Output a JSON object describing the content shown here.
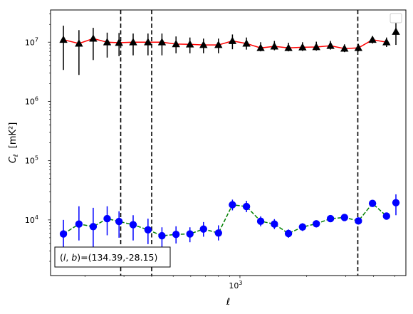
{
  "chart_data": {
    "type": "scatter",
    "xlabel": "ℓ",
    "ylabel": "C_ℓ  [mK²]",
    "xscale": "log",
    "yscale": "log",
    "xlim": [
      140,
      5600
    ],
    "ylim": [
      1150,
      35000000
    ],
    "x_ticks": [
      {
        "value": 1000,
        "label": "10",
        "exp": "3"
      }
    ],
    "y_ticks": [
      {
        "value": 10000,
        "label": "10",
        "exp": "4"
      },
      {
        "value": 100000,
        "label": "10",
        "exp": "5"
      },
      {
        "value": 1000000,
        "label": "10",
        "exp": "6"
      },
      {
        "value": 10000000,
        "label": "10",
        "exp": "7"
      }
    ],
    "legend": "upper right (empty)",
    "vlines": [
      290,
      400,
      3400
    ],
    "annotation": "(l, b)=(134.39,-28.15)",
    "series": [
      {
        "marker": "triangle",
        "color": "#000000",
        "line_color": "#ff0000",
        "line_style": "solid",
        "x": [
          160,
          188,
          218,
          252,
          285,
          330,
          385,
          445,
          515,
          595,
          685,
          800,
          925,
          1070,
          1240,
          1430,
          1655,
          1915,
          2210,
          2560,
          2960,
          3420,
          3960,
          4580
        ],
        "y": [
          11000000,
          9500000,
          11500000,
          10000000,
          9800000,
          10000000,
          10000000,
          10000000,
          9300000,
          9200000,
          9000000,
          9000000,
          10500000,
          9500000,
          8000000,
          8500000,
          8000000,
          8200000,
          8300000,
          8700000,
          7800000,
          8000000,
          11000000,
          10000000
        ],
        "yerr_low": [
          3400000,
          2800000,
          5000000,
          5500000,
          5800000,
          6000000,
          6000000,
          6000000,
          6500000,
          6500000,
          6500000,
          6500000,
          7600000,
          7500000,
          7000000,
          7300000,
          7000000,
          7100000,
          7200000,
          7500000,
          6800000,
          7000000,
          9500000,
          8300000
        ],
        "yerr_high": [
          19000000,
          16000000,
          17500000,
          14500000,
          14300000,
          14000000,
          14000000,
          14000000,
          12500000,
          12000000,
          11500000,
          11500000,
          13500000,
          12000000,
          10000000,
          10500000,
          9800000,
          10000000,
          10200000,
          10500000,
          9200000,
          9400000,
          12500000,
          12000000
        ]
      },
      {
        "marker": "triangle",
        "color": "#000000",
        "line_color": "#000000",
        "line_style": "none",
        "x": [
          5050
        ],
        "y": [
          15000000
        ],
        "yerr_low": [
          9000000
        ],
        "yerr_high": [
          25000000
        ]
      },
      {
        "marker": "circle",
        "color": "#0000ff",
        "line_color": "#008000",
        "line_style": "dashed",
        "x": [
          160,
          188,
          218,
          252,
          285,
          330,
          385,
          445,
          515,
          595,
          685,
          800,
          925,
          1070,
          1240,
          1430,
          1655,
          1915,
          2210,
          2560,
          2960,
          3420,
          3960,
          4580
        ],
        "y": [
          5800,
          8500,
          7700,
          10500,
          9400,
          8300,
          6800,
          5400,
          5700,
          5800,
          7000,
          6000,
          18000,
          16800,
          9500,
          8500,
          5900,
          7600,
          8600,
          10500,
          11000,
          9600,
          19000,
          11600
        ],
        "yerr_low": [
          3000,
          4500,
          3500,
          5500,
          5000,
          4500,
          3900,
          3500,
          4000,
          4200,
          5200,
          4500,
          14500,
          13500,
          7800,
          7000,
          5000,
          6500,
          7500,
          9300,
          9800,
          8700,
          17200,
          10200
        ],
        "yerr_high": [
          10000,
          17000,
          16000,
          17000,
          14000,
          12000,
          10500,
          7500,
          7800,
          7500,
          9200,
          8100,
          22000,
          21000,
          11500,
          10300,
          6900,
          8800,
          9800,
          11800,
          12300,
          10600,
          21000,
          13000
        ]
      },
      {
        "marker": "circle",
        "color": "#0000ff",
        "line_color": "#0000ff",
        "line_style": "none",
        "x": [
          5050
        ],
        "y": [
          19500
        ],
        "yerr_low": [
          12000
        ],
        "yerr_high": [
          27000
        ]
      }
    ]
  }
}
